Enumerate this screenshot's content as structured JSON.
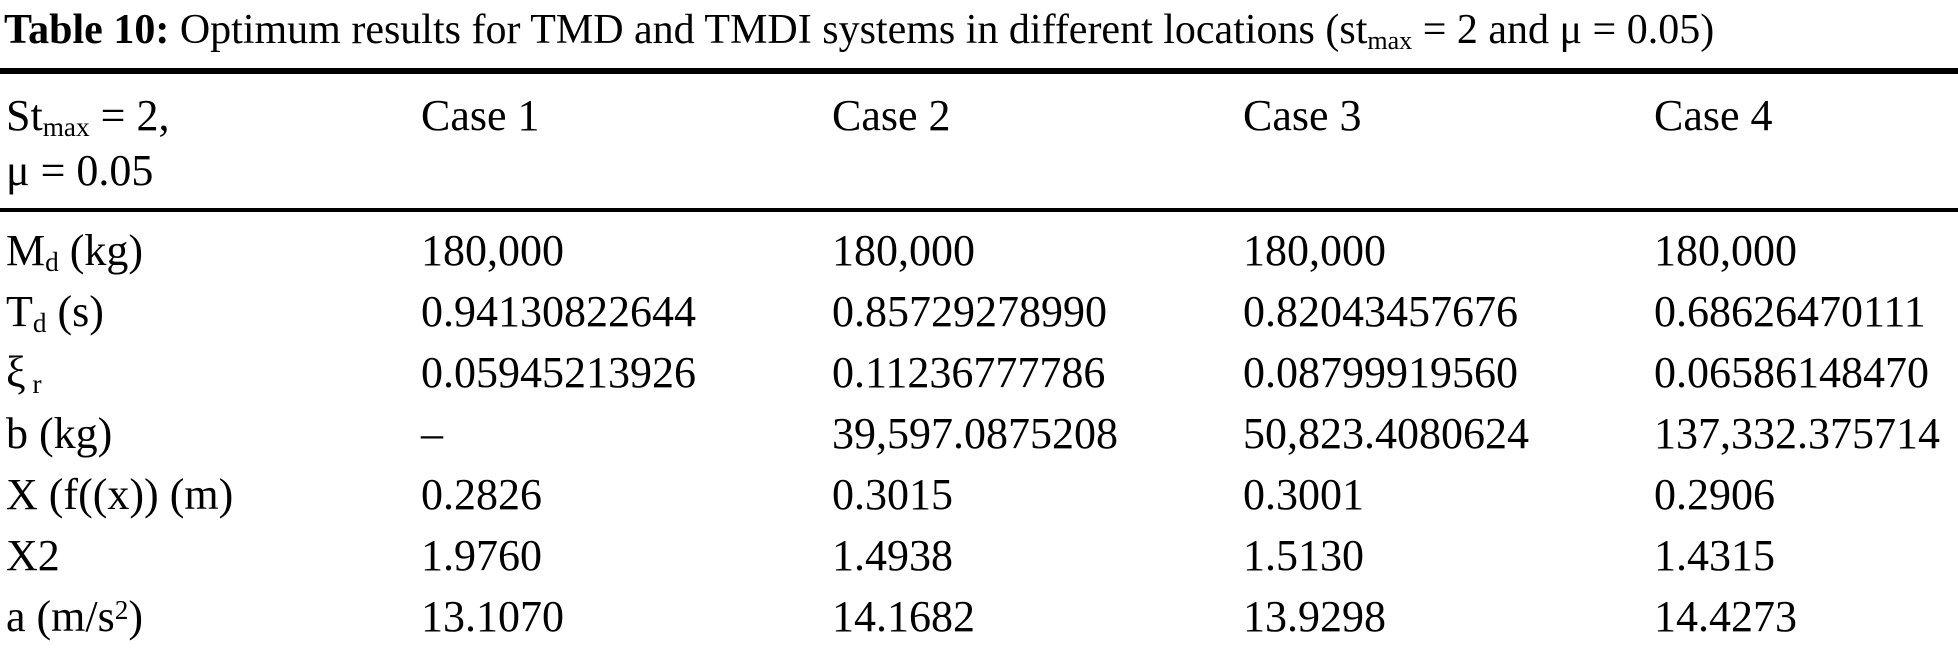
{
  "title": {
    "label": "Table 10:",
    "text_before_sub": " Optimum results for TMD and TMDI systems in different locations (st",
    "sub": "max",
    "text_after_sub": " = 2 and μ = 0.05)"
  },
  "table": {
    "header": {
      "col0": {
        "line1_pre": "St",
        "line1_sub": "max",
        "line1_post": " = 2,",
        "line2": "μ = 0.05"
      },
      "cases": [
        "Case 1",
        "Case 2",
        "Case 3",
        "Case 4"
      ]
    },
    "rows": [
      {
        "label": {
          "pre": "M",
          "sub": "d",
          "sup": "",
          "post": " (kg)"
        },
        "values": [
          "180,000",
          "180,000",
          "180,000",
          "180,000"
        ]
      },
      {
        "label": {
          "pre": "T",
          "sub": "d",
          "sup": "",
          "post": " (s)"
        },
        "values": [
          "0.94130822644",
          "0.85729278990",
          "0.82043457676",
          "0.68626470111"
        ]
      },
      {
        "label": {
          "pre": "ξ",
          "sub": " r",
          "sup": "",
          "post": ""
        },
        "values": [
          "0.05945213926",
          "0.11236777786",
          "0.08799919560",
          "0.06586148470"
        ]
      },
      {
        "label": {
          "pre": "b (kg)",
          "sub": "",
          "sup": "",
          "post": ""
        },
        "values": [
          "–",
          "39,597.0875208",
          "50,823.4080624",
          "137,332.375714"
        ]
      },
      {
        "label": {
          "pre": "X (f((x)) (m)",
          "sub": "",
          "sup": "",
          "post": ""
        },
        "values": [
          "0.2826",
          "0.3015",
          "0.3001",
          "0.2906"
        ]
      },
      {
        "label": {
          "pre": "X2",
          "sub": "",
          "sup": "",
          "post": ""
        },
        "values": [
          "1.9760",
          "1.4938",
          "1.5130",
          "1.4315"
        ]
      },
      {
        "label": {
          "pre": "a (m/s",
          "sub": "",
          "sup": "2",
          "post": ")"
        },
        "values": [
          "13.1070",
          "14.1682",
          "13.9298",
          "14.4273"
        ]
      }
    ]
  }
}
